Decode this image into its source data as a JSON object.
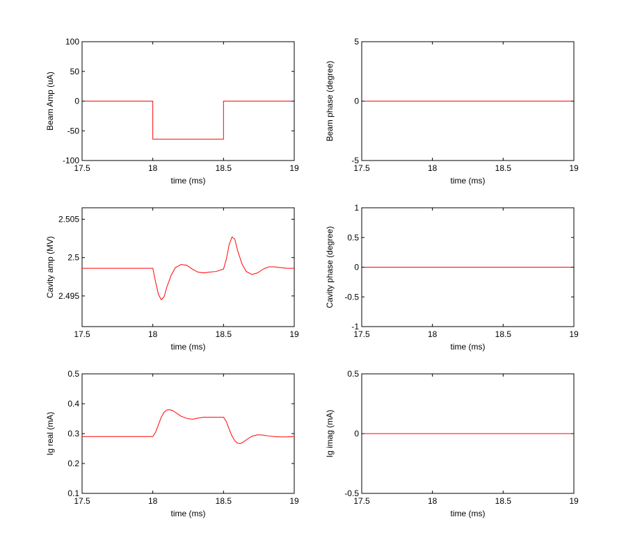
{
  "chart_data": [
    {
      "type": "line",
      "xlabel": "time (ms)",
      "ylabel": "Beam Amp (uA)",
      "xlim": [
        17.5,
        19
      ],
      "ylim": [
        -100,
        100
      ],
      "xticks": [
        "17.5",
        "18",
        "18.5",
        "19"
      ],
      "yticks": [
        "-100",
        "-50",
        "0",
        "50",
        "100"
      ],
      "grid": false,
      "line_color": "#ff0000",
      "series": [
        {
          "x": [
            17.5,
            18.0,
            18.0,
            18.5,
            18.5,
            19.0
          ],
          "y": [
            0,
            0,
            -64,
            -64,
            0,
            0
          ]
        }
      ]
    },
    {
      "type": "line",
      "xlabel": "time (ms)",
      "ylabel": "Beam phase (degree)",
      "xlim": [
        17.5,
        19
      ],
      "ylim": [
        -5,
        5
      ],
      "xticks": [
        "17.5",
        "18",
        "18.5",
        "19"
      ],
      "yticks": [
        "-5",
        "0",
        "5"
      ],
      "grid": false,
      "line_color": "#ff0000",
      "series": [
        {
          "x": [
            17.5,
            19.0
          ],
          "y": [
            0,
            0
          ]
        }
      ]
    },
    {
      "type": "line",
      "xlabel": "time (ms)",
      "ylabel": "Cavity amp (MV)",
      "xlim": [
        17.5,
        19
      ],
      "ylim": [
        2.491,
        2.5065
      ],
      "xticks": [
        "17.5",
        "18",
        "18.5",
        "19"
      ],
      "yticks": [
        "2.495",
        "2.5",
        "2.505"
      ],
      "grid": false,
      "line_color": "#ff0000",
      "series": [
        {
          "x": [
            17.5,
            17.9,
            18.0,
            18.02,
            18.04,
            18.06,
            18.08,
            18.1,
            18.13,
            18.16,
            18.2,
            18.24,
            18.28,
            18.32,
            18.36,
            18.4,
            18.45,
            18.5,
            18.52,
            18.54,
            18.56,
            18.58,
            18.6,
            18.63,
            18.66,
            18.7,
            18.74,
            18.78,
            18.82,
            18.86,
            18.9,
            18.95,
            19.0
          ],
          "y": [
            2.4986,
            2.4986,
            2.4986,
            2.4968,
            2.4952,
            2.4945,
            2.4949,
            2.4962,
            2.4977,
            2.4987,
            2.4991,
            2.499,
            2.4985,
            2.4981,
            2.498,
            2.4981,
            2.4982,
            2.4985,
            2.4998,
            2.5017,
            2.5027,
            2.5024,
            2.5009,
            2.4992,
            2.4982,
            2.4978,
            2.498,
            2.4985,
            2.4988,
            2.4988,
            2.4987,
            2.4986,
            2.4986
          ]
        }
      ]
    },
    {
      "type": "line",
      "xlabel": "time (ms)",
      "ylabel": "Cavity phase (degree)",
      "xlim": [
        17.5,
        19
      ],
      "ylim": [
        -1,
        1
      ],
      "xticks": [
        "17.5",
        "18",
        "18.5",
        "19"
      ],
      "yticks": [
        "-1",
        "-0.5",
        "0",
        "0.5",
        "1"
      ],
      "grid": false,
      "line_color": "#ff0000",
      "series": [
        {
          "x": [
            17.5,
            19.0
          ],
          "y": [
            0,
            0
          ]
        }
      ]
    },
    {
      "type": "line",
      "xlabel": "time (ms)",
      "ylabel": "Ig real (mA)",
      "xlim": [
        17.5,
        19
      ],
      "ylim": [
        0.1,
        0.5
      ],
      "xticks": [
        "17.5",
        "18",
        "18.5",
        "19"
      ],
      "yticks": [
        "0.1",
        "0.2",
        "0.3",
        "0.4",
        "0.5"
      ],
      "grid": false,
      "line_color": "#ff0000",
      "series": [
        {
          "x": [
            17.5,
            17.9,
            18.0,
            18.02,
            18.04,
            18.06,
            18.08,
            18.1,
            18.12,
            18.14,
            18.17,
            18.2,
            18.24,
            18.28,
            18.32,
            18.36,
            18.4,
            18.45,
            18.5,
            18.52,
            18.54,
            18.56,
            18.58,
            18.6,
            18.62,
            18.64,
            18.67,
            18.7,
            18.74,
            18.78,
            18.82,
            18.86,
            18.9,
            18.95,
            19.0
          ],
          "y": [
            0.29,
            0.29,
            0.29,
            0.305,
            0.33,
            0.355,
            0.372,
            0.379,
            0.38,
            0.377,
            0.368,
            0.358,
            0.351,
            0.348,
            0.352,
            0.355,
            0.355,
            0.355,
            0.355,
            0.34,
            0.315,
            0.292,
            0.276,
            0.268,
            0.267,
            0.272,
            0.282,
            0.291,
            0.296,
            0.295,
            0.292,
            0.29,
            0.289,
            0.289,
            0.29
          ]
        }
      ]
    },
    {
      "type": "line",
      "xlabel": "time (ms)",
      "ylabel": "Ig imag (mA)",
      "xlim": [
        17.5,
        19
      ],
      "ylim": [
        -0.5,
        0.5
      ],
      "xticks": [
        "17.5",
        "18",
        "18.5",
        "19"
      ],
      "yticks": [
        "-0.5",
        "0",
        "0.5"
      ],
      "grid": false,
      "line_color": "#ff0000",
      "series": [
        {
          "x": [
            17.5,
            19.0
          ],
          "y": [
            0,
            0
          ]
        }
      ]
    }
  ]
}
